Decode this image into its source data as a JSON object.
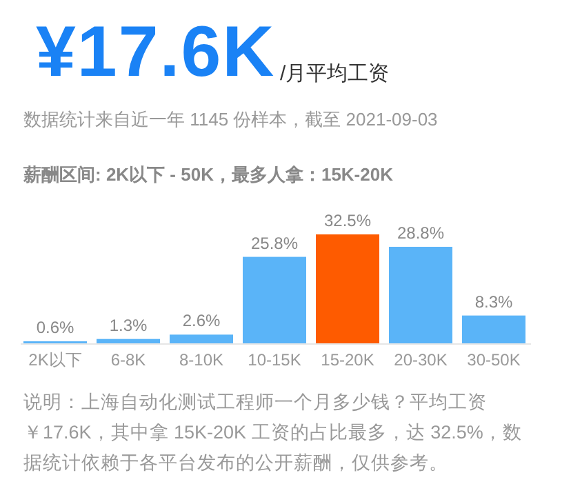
{
  "chart_data": {
    "type": "bar",
    "title": "¥17.6K",
    "subtitle": "/月平均工资",
    "annotations": [
      "数据统计来自近一年 1145 份样本，截至 2021-09-03",
      "薪酬区间: 2K以下 - 50K，最多人拿：15K-20K",
      "说明：上海自动化测试工程师一个月多少钱？平均工资￥17.6K，其中拿 15K-20K 工资的占比最多，达 32.5%，数据统计依赖于各平台发布的公开薪酬，仅供参考。"
    ],
    "categories": [
      "2K以下",
      "6-8K",
      "8-10K",
      "10-15K",
      "15-20K",
      "20-30K",
      "30-50K"
    ],
    "values": [
      0.6,
      1.3,
      2.6,
      25.8,
      32.5,
      28.8,
      8.3
    ],
    "value_labels": [
      "0.6%",
      "1.3%",
      "2.6%",
      "25.8%",
      "32.5%",
      "28.8%",
      "8.3%"
    ],
    "colors": [
      "#5ab4f8",
      "#5ab4f8",
      "#5ab4f8",
      "#5ab4f8",
      "#fe5b00",
      "#5ab4f8",
      "#5ab4f8"
    ]
  }
}
